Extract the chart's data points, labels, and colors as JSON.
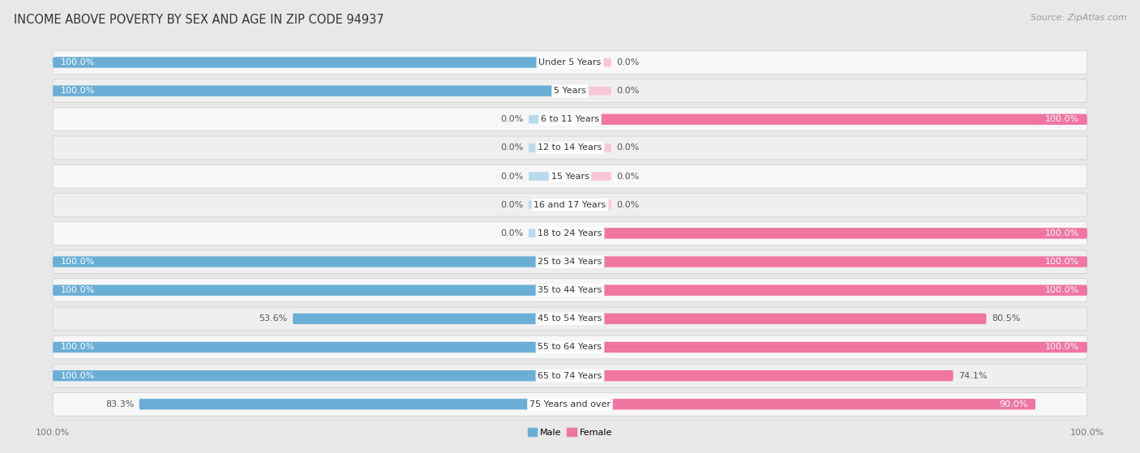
{
  "title": "INCOME ABOVE POVERTY BY SEX AND AGE IN ZIP CODE 94937",
  "source": "Source: ZipAtlas.com",
  "categories": [
    "Under 5 Years",
    "5 Years",
    "6 to 11 Years",
    "12 to 14 Years",
    "15 Years",
    "16 and 17 Years",
    "18 to 24 Years",
    "25 to 34 Years",
    "35 to 44 Years",
    "45 to 54 Years",
    "55 to 64 Years",
    "65 to 74 Years",
    "75 Years and over"
  ],
  "male_values": [
    100.0,
    100.0,
    0.0,
    0.0,
    0.0,
    0.0,
    0.0,
    100.0,
    100.0,
    53.6,
    100.0,
    100.0,
    83.3
  ],
  "female_values": [
    0.0,
    0.0,
    100.0,
    0.0,
    0.0,
    0.0,
    100.0,
    100.0,
    100.0,
    80.5,
    100.0,
    74.1,
    90.0
  ],
  "male_color": "#6aaed6",
  "female_color": "#f075a0",
  "male_stub_color": "#b8d9ee",
  "female_stub_color": "#f9c6d8",
  "male_label": "Male",
  "female_label": "Female",
  "background_color": "#e8e8e8",
  "row_bg_odd": "#f5f5f5",
  "row_bg_even": "#ebebeb",
  "title_fontsize": 10.5,
  "source_fontsize": 8,
  "label_fontsize": 8,
  "value_fontsize": 8,
  "category_fontsize": 8
}
